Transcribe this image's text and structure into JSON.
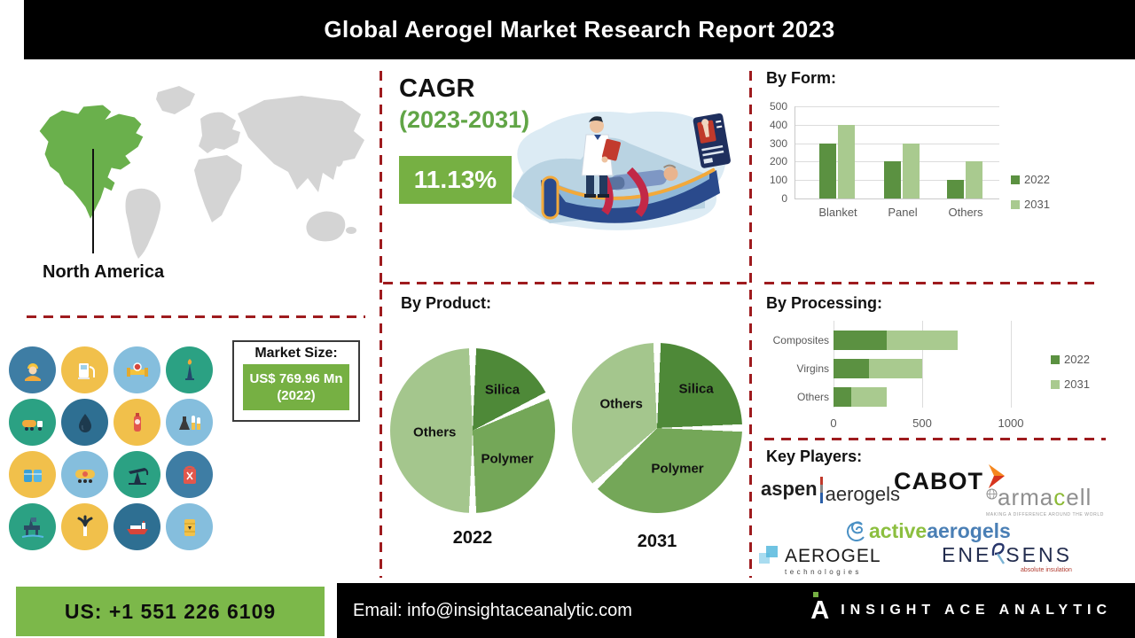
{
  "banner": {
    "title": "Global Aerogel Market Research Report 2023"
  },
  "map": {
    "region_label": "North America",
    "highlight_color": "#6ab04c",
    "continent_color": "#d4d4d4"
  },
  "cagr": {
    "heading": "CAGR",
    "period": "(2023-2031)",
    "value": "11.13%"
  },
  "market_size": {
    "label": "Market Size:",
    "value": "US$ 769.96 Mn (2022)"
  },
  "industry_icons": [
    {
      "name": "oil-worker-icon",
      "bg": "#3e7da4"
    },
    {
      "name": "fuel-pump-icon",
      "bg": "#f1c04b"
    },
    {
      "name": "pipeline-valve-icon",
      "bg": "#85bedd"
    },
    {
      "name": "oil-rig-flame-icon",
      "bg": "#2ba183"
    },
    {
      "name": "tanker-truck-icon",
      "bg": "#2ba183"
    },
    {
      "name": "oil-drop-icon",
      "bg": "#2e6f92"
    },
    {
      "name": "gas-cylinder-icon",
      "bg": "#f1c04b"
    },
    {
      "name": "lab-flasks-icon",
      "bg": "#85bedd"
    },
    {
      "name": "storage-tanks-icon",
      "bg": "#f1c04b"
    },
    {
      "name": "rail-tank-car-icon",
      "bg": "#85bedd"
    },
    {
      "name": "pump-jack-icon",
      "bg": "#2ba183"
    },
    {
      "name": "jerry-can-icon",
      "bg": "#3e7da4"
    },
    {
      "name": "offshore-platform-icon",
      "bg": "#2ba183"
    },
    {
      "name": "oil-gusher-icon",
      "bg": "#f1c04b"
    },
    {
      "name": "tanker-ship-icon",
      "bg": "#2e6f92"
    },
    {
      "name": "oil-barrel-icon",
      "bg": "#85bedd"
    }
  ],
  "chart_data": [
    {
      "id": "by_form",
      "type": "bar",
      "title": "By Form:",
      "categories": [
        "Blanket",
        "Panel",
        "Others"
      ],
      "series": [
        {
          "name": "2022",
          "color": "#5b9141",
          "values": [
            300,
            200,
            100
          ]
        },
        {
          "name": "2031",
          "color": "#a9ca8f",
          "values": [
            400,
            300,
            200
          ]
        }
      ],
      "ylim": [
        0,
        500
      ],
      "yticks": [
        0,
        100,
        200,
        300,
        400,
        500
      ],
      "grid": true,
      "legend_position": "right"
    },
    {
      "id": "by_product",
      "type": "pie",
      "title": "By Product:",
      "pies": [
        {
          "label": "2022",
          "slices": [
            {
              "name": "Silica",
              "value": 18,
              "color": "#4e8938"
            },
            {
              "name": "Polymer",
              "value": 32,
              "color": "#74a758"
            },
            {
              "name": "Others",
              "value": 50,
              "color": "#a4c68d"
            }
          ]
        },
        {
          "label": "2031",
          "slices": [
            {
              "name": "Silica",
              "value": 25,
              "color": "#4e8938"
            },
            {
              "name": "Polymer",
              "value": 38,
              "color": "#74a758"
            },
            {
              "name": "Others",
              "value": 37,
              "color": "#a4c68d"
            }
          ]
        }
      ]
    },
    {
      "id": "by_processing",
      "type": "bar",
      "orientation": "horizontal",
      "stacked": true,
      "title": "By Processing:",
      "categories": [
        "Composites",
        "Virgins",
        "Others"
      ],
      "series": [
        {
          "name": "2022",
          "color": "#5b9141",
          "values": [
            300,
            200,
            100
          ]
        },
        {
          "name": "2031",
          "color": "#a9ca8f",
          "values": [
            400,
            300,
            200
          ]
        }
      ],
      "xlim": [
        0,
        1300
      ],
      "xticks": [
        0,
        500,
        1000
      ],
      "grid": true,
      "legend_position": "right"
    }
  ],
  "key_players": {
    "title": "Key Players:",
    "logos": [
      {
        "name": "aspen-aerogels-logo",
        "text_primary": "aspen",
        "text_secondary": "aerogels"
      },
      {
        "name": "cabot-logo",
        "text": "CABOT"
      },
      {
        "name": "armacell-logo",
        "text_start": "arma",
        "text_accent": "c",
        "text_end": "ell",
        "tagline": "MAKING A DIFFERENCE AROUND THE WORLD"
      },
      {
        "name": "active-aerogels-logo",
        "text_primary": "active",
        "text_secondary": "aerogels"
      },
      {
        "name": "aerogel-technologies-logo",
        "text_primary": "AEROGEL",
        "text_secondary": "technologies"
      },
      {
        "name": "enersens-logo",
        "text_left": "ENE",
        "text_right": "SENS",
        "tagline": "absolute insulation"
      }
    ]
  },
  "footer": {
    "phone": "US: +1 551 226 6109",
    "email": "Email: info@insightaceanalytic.com",
    "brand": "INSIGHT ACE ANALYTIC"
  }
}
